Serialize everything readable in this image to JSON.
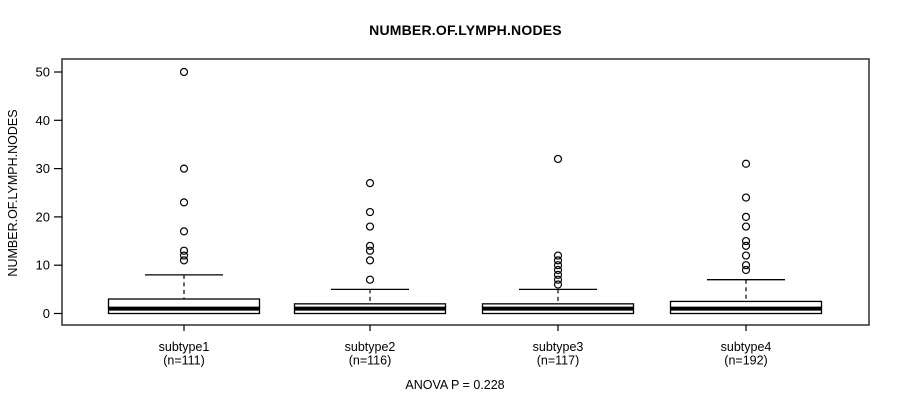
{
  "page": {
    "background": "#ffffff"
  },
  "chart_data": {
    "type": "boxplot",
    "title": "NUMBER.OF.LYMPH.NODES",
    "ylabel": "NUMBER.OF.LYMPH.NODES",
    "annotation": "ANOVA P = 0.228",
    "xlabel": "",
    "ylim": [
      0,
      50
    ],
    "yticks": [
      0,
      10,
      20,
      30,
      40,
      50
    ],
    "grid": false,
    "legend": null,
    "groups": [
      {
        "label": "subtype1",
        "sublabel": "(n=111)",
        "n": 111,
        "whisker_low": 0,
        "q1": 0,
        "median": 1,
        "q3": 3,
        "whisker_high": 8,
        "outliers": [
          11,
          12,
          13,
          17,
          23,
          30,
          50
        ]
      },
      {
        "label": "subtype2",
        "sublabel": "(n=116)",
        "n": 116,
        "whisker_low": 0,
        "q1": 0,
        "median": 1,
        "q3": 2,
        "whisker_high": 5,
        "outliers": [
          7,
          11,
          13,
          14,
          18,
          21,
          27
        ]
      },
      {
        "label": "subtype3",
        "sublabel": "(n=117)",
        "n": 117,
        "whisker_low": 0,
        "q1": 0,
        "median": 1,
        "q3": 2,
        "whisker_high": 5,
        "outliers": [
          6,
          7,
          8,
          9,
          10,
          11,
          12,
          32
        ]
      },
      {
        "label": "subtype4",
        "sublabel": "(n=192)",
        "n": 192,
        "whisker_low": 0,
        "q1": 0,
        "median": 1,
        "q3": 2.5,
        "whisker_high": 7,
        "outliers": [
          9,
          10,
          12,
          14,
          15,
          18,
          20,
          24,
          31
        ]
      }
    ],
    "colors": {
      "line": "#000000",
      "box_fill": "#ffffff",
      "plot_border": "#3c3c3c",
      "background": "#ffffff"
    }
  }
}
